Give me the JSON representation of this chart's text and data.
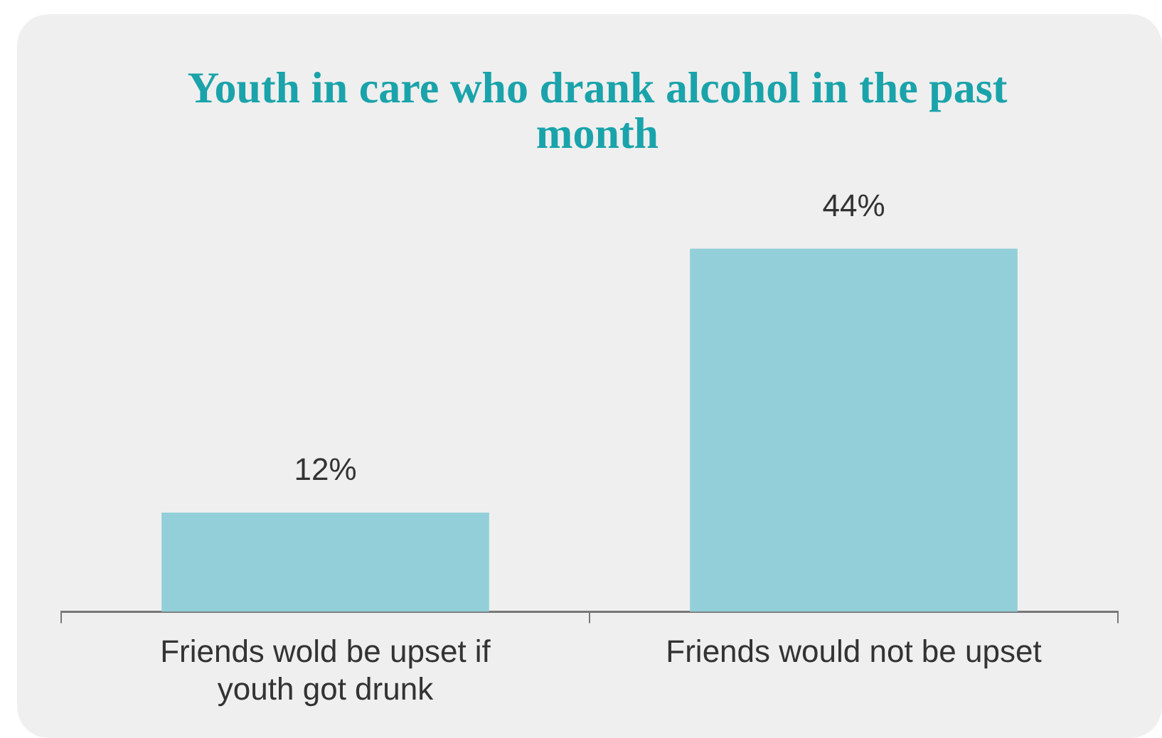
{
  "chart_data": {
    "type": "bar",
    "title": "Youth in care who drank alcohol in the past month",
    "categories": [
      "Friends wold be upset if youth got drunk",
      "Friends would not be upset"
    ],
    "values": [
      12,
      44
    ],
    "color": "#93cfd8",
    "data_labels": true,
    "value_labels": [
      "12%",
      "44%"
    ],
    "legend": false,
    "grid": false
  }
}
